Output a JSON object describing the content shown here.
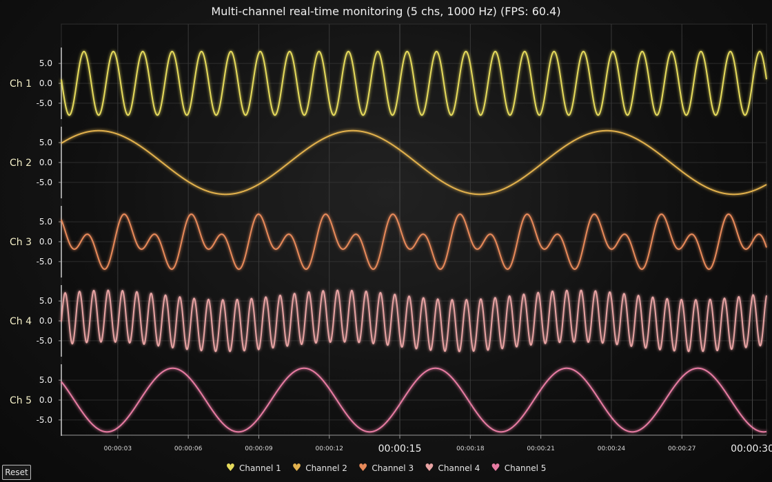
{
  "title": "Multi-channel real-time monitoring (5 chs, 1000 Hz) (FPS: 60.4)",
  "reset_label": "Reset",
  "colors": {
    "background": "#141414",
    "grid": "#3a3a3a",
    "axis": "#9a9a9a",
    "channels": [
      "#e6db5c",
      "#e3b24e",
      "#e88a5a",
      "#e8a3a3",
      "#e87ca3"
    ]
  },
  "legend": [
    {
      "label": "Channel 1",
      "icon": "heart-pulse-icon"
    },
    {
      "label": "Channel 2",
      "icon": "heart-pulse-icon"
    },
    {
      "label": "Channel 3",
      "icon": "heart-pulse-icon"
    },
    {
      "label": "Channel 4",
      "icon": "heart-pulse-icon"
    },
    {
      "label": "Channel 5",
      "icon": "heart-pulse-icon"
    }
  ],
  "chart_data": {
    "type": "line",
    "title": "Multi-channel real-time monitoring (5 chs, 1000 Hz) (FPS: 60.4)",
    "x_unit": "seconds",
    "xlim": [
      0.6,
      30.6
    ],
    "x_ticks": [
      {
        "value": 3,
        "label": "00:00:03",
        "major": false
      },
      {
        "value": 6,
        "label": "00:00:06",
        "major": false
      },
      {
        "value": 9,
        "label": "00:00:09",
        "major": false
      },
      {
        "value": 12,
        "label": "00:00:12",
        "major": false
      },
      {
        "value": 15,
        "label": "00:00:15",
        "major": true
      },
      {
        "value": 18,
        "label": "00:00:18",
        "major": false
      },
      {
        "value": 21,
        "label": "00:00:21",
        "major": false
      },
      {
        "value": 24,
        "label": "00:00:24",
        "major": false
      },
      {
        "value": 27,
        "label": "00:00:27",
        "major": false
      },
      {
        "value": 30,
        "label": "00:00:30",
        "major": true
      }
    ],
    "grid": true,
    "legend_position": "bottom-center",
    "series": [
      {
        "name": "Channel 1",
        "axis_label": "Ch 1",
        "ylim": [
          -9,
          9
        ],
        "y_ticks": [
          "5.0",
          "0.0",
          "-5.0"
        ],
        "y_tick_values": [
          5,
          0,
          -5
        ],
        "components": [
          {
            "amplitude": 8,
            "frequency": 0.8,
            "phase": 0
          }
        ]
      },
      {
        "name": "Channel 2",
        "axis_label": "Ch 2",
        "ylim": [
          -9,
          9
        ],
        "y_ticks": [
          "5.0",
          "0.0",
          "-5.0"
        ],
        "y_tick_values": [
          5,
          0,
          -5
        ],
        "components": [
          {
            "amplitude": 8,
            "frequency": 0.0925,
            "phase": 0.3
          }
        ]
      },
      {
        "name": "Channel 3",
        "axis_label": "Ch 3",
        "ylim": [
          -9,
          9
        ],
        "y_ticks": [
          "5.0",
          "0.0",
          "-5.0"
        ],
        "y_tick_values": [
          5,
          0,
          -5
        ],
        "components": [
          {
            "amplitude": 3.6,
            "frequency": 0.35,
            "phase": 0
          },
          {
            "amplitude": 4.2,
            "frequency": 0.7,
            "phase": 0
          }
        ]
      },
      {
        "name": "Channel 4",
        "axis_label": "Ch 4",
        "ylim": [
          -9,
          9
        ],
        "y_ticks": [
          "5.0",
          "0.0",
          "-5.0"
        ],
        "y_tick_values": [
          5,
          0,
          -5
        ],
        "components": [
          {
            "amplitude": 6.5,
            "frequency": 1.64,
            "phase": 0
          },
          {
            "amplitude": 1.2,
            "frequency": 0.1,
            "phase": 0
          }
        ]
      },
      {
        "name": "Channel 5",
        "axis_label": "Ch 5",
        "ylim": [
          -9,
          9
        ],
        "y_ticks": [
          "5.0",
          "0.0",
          "-5.0"
        ],
        "y_tick_values": [
          5,
          0,
          -5
        ],
        "components": [
          {
            "amplitude": 8,
            "frequency": 0.179,
            "phase": 1.85
          }
        ]
      }
    ]
  }
}
